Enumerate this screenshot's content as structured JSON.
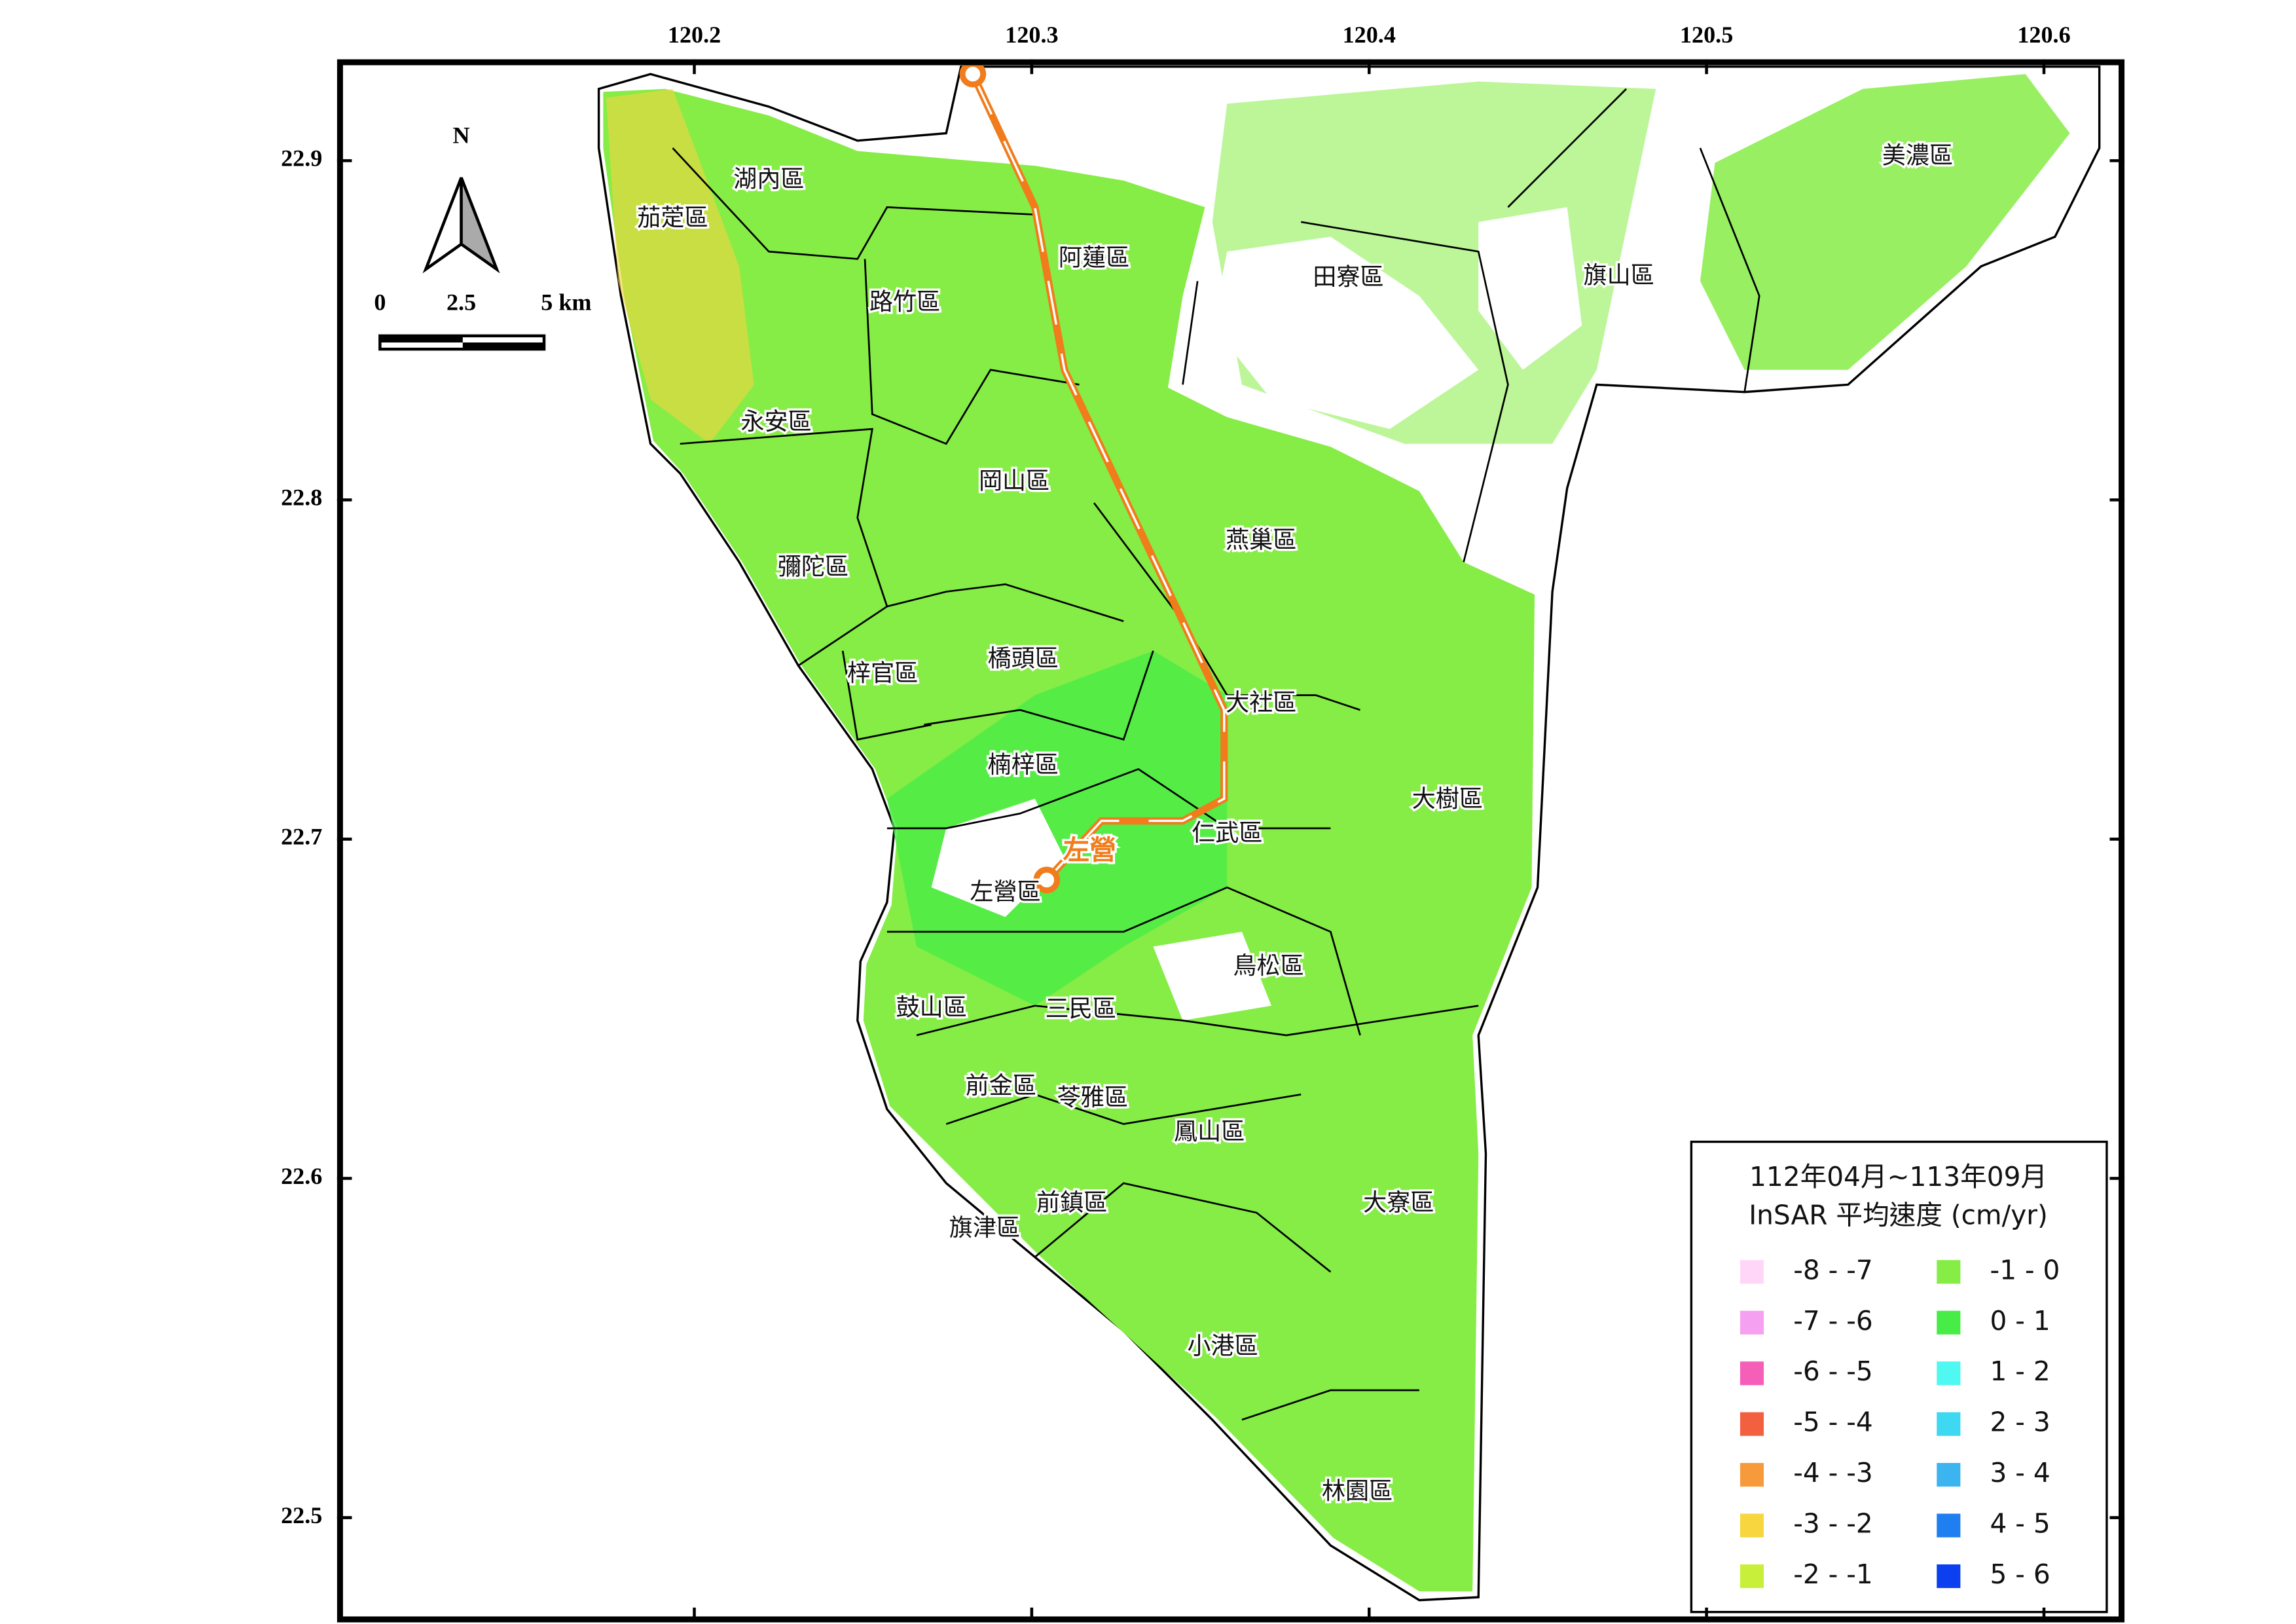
{
  "map": {
    "lon_ticks": [
      120.2,
      120.3,
      120.4,
      120.5,
      120.6
    ],
    "lat_ticks": [
      22.9,
      22.8,
      22.7,
      22.6,
      22.5
    ],
    "lon_range": [
      120.095,
      120.623
    ],
    "lat_range": [
      22.929,
      22.47
    ],
    "north": "N",
    "scale_bar": [
      "0",
      "2.5",
      "5 km"
    ],
    "station": "左營",
    "districts": [
      "湖內區",
      "茄萣區",
      "路竹區",
      "阿蓮區",
      "田寮區",
      "旗山區",
      "美濃區",
      "永安區",
      "岡山區",
      "燕巢區",
      "彌陀區",
      "梓官區",
      "橋頭區",
      "大社區",
      "楠梓區",
      "大樹區",
      "仁武區",
      "左營區",
      "鳥松區",
      "鼓山區",
      "三民區",
      "前金區",
      "苓雅區",
      "鳳山區",
      "大寮區",
      "前鎮區",
      "旗津區",
      "小港區",
      "林園區"
    ],
    "legend": {
      "title": [
        "112年04月~113年09月",
        "InSAR 平均速度 (cm/yr)"
      ],
      "items": [
        {
          "label": "-8 - -7",
          "color": "#ffd6f7"
        },
        {
          "label": "-7 - -6",
          "color": "#f5a0f0"
        },
        {
          "label": "-6 - -5",
          "color": "#f55fb8"
        },
        {
          "label": "-5 - -4",
          "color": "#f26040"
        },
        {
          "label": "-4 - -3",
          "color": "#f79a3c"
        },
        {
          "label": "-3 - -2",
          "color": "#f7d640"
        },
        {
          "label": "-2 - -1",
          "color": "#c8f03a"
        },
        {
          "label": "-1 - 0",
          "color": "#86ec46"
        },
        {
          "label": "0 - 1",
          "color": "#48ec46"
        },
        {
          "label": "1 - 2",
          "color": "#4ff8f0"
        },
        {
          "label": "2 - 3",
          "color": "#3fd8f2"
        },
        {
          "label": "3 - 4",
          "color": "#3cb4f0"
        },
        {
          "label": "4 - 5",
          "color": "#1f7ff0"
        },
        {
          "label": "5 - 6",
          "color": "#0b3ff0"
        }
      ]
    }
  }
}
